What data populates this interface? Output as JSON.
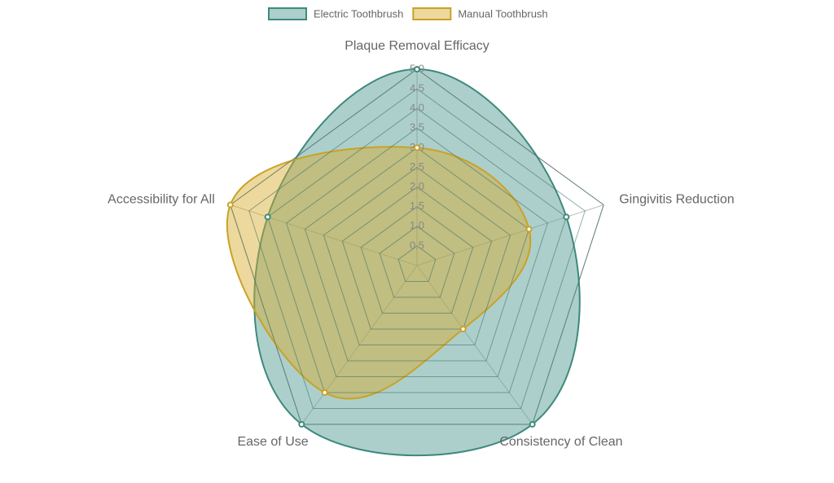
{
  "chart_data": {
    "type": "radar",
    "categories": [
      "Plaque Removal Efficacy",
      "Gingivitis Reduction",
      "Consistency of Clean",
      "Ease of Use",
      "Accessibility for All"
    ],
    "series": [
      {
        "name": "Electric Toothbrush",
        "color": "#3d8a7c",
        "fill": "rgba(92,160,152,0.5)",
        "values": [
          5,
          4,
          5,
          5,
          4
        ]
      },
      {
        "name": "Manual Toothbrush",
        "color": "#c9a227",
        "fill": "rgba(214,168,40,0.45)",
        "values": [
          3,
          3,
          2,
          4,
          5
        ]
      }
    ],
    "rlim": [
      0,
      5
    ],
    "rticks": [
      {
        "value": 0.5,
        "label": "0.5"
      },
      {
        "value": 1,
        "label": "1.0"
      },
      {
        "value": 1.5,
        "label": "1.5"
      },
      {
        "value": 2,
        "label": "2.0"
      },
      {
        "value": 2.5,
        "label": "2.5"
      },
      {
        "value": 3,
        "label": "3.0"
      },
      {
        "value": 3.5,
        "label": "3.5"
      },
      {
        "value": 4,
        "label": "4.0"
      },
      {
        "value": 4.5,
        "label": "4.5"
      },
      {
        "value": 5,
        "label": "5.0"
      }
    ],
    "grid": true,
    "legend": "top"
  }
}
